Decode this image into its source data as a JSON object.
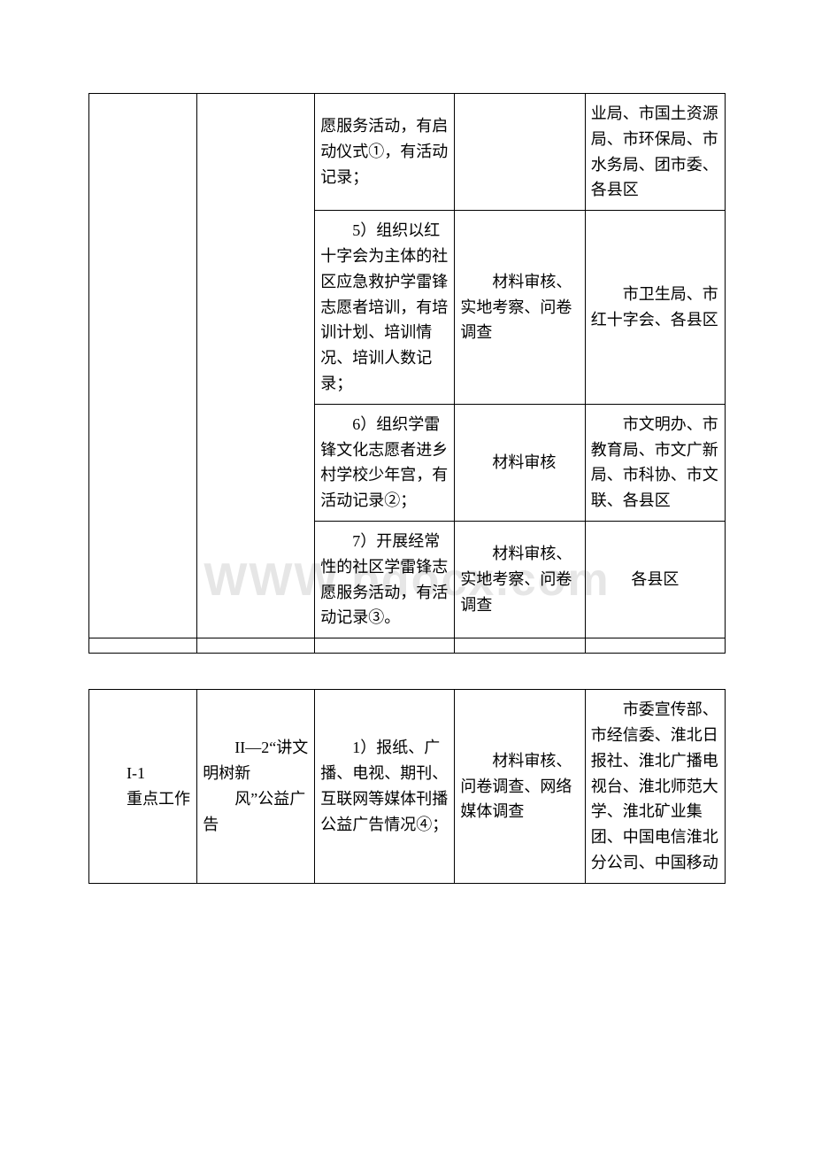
{
  "watermark": "WWW.bdocx.com",
  "table1": {
    "rows": [
      {
        "c1": "",
        "c2": "",
        "c3": "愿服务活动，有启动仪式①，有活动记录；",
        "c4": "",
        "c5": "业局、市国土资源局、市环保局、市水务局、团市委、各县区"
      },
      {
        "c3": "　　5）组织以红十字会为主体的社区应急救护学雷锋志愿者培训，有培训计划、培训情况、培训人数记录；",
        "c4": "　　材料审核、实地考察、问卷调查",
        "c5": "　　市卫生局、市红十字会、各县区"
      },
      {
        "c3": "　　6）组织学雷锋文化志愿者进乡村学校少年宫，有活动记录②；",
        "c4": "　　材料审核",
        "c5": "　　市文明办、市教育局、市文广新局、市科协、市文联、各县区"
      },
      {
        "c3": "　　7）开展经常性的社区学雷锋志愿服务活动，有活动记录③。",
        "c4": "　　材料审核、实地考察、问卷调查",
        "c5": "各县区"
      },
      {
        "c1": "",
        "c2": "",
        "c3": "",
        "c4": "",
        "c5": ""
      }
    ]
  },
  "table2": {
    "rows": [
      {
        "c1": "　　I-1\n　　重点工作",
        "c2": "　　II—2“讲文明树新\n　　风”公益广告",
        "c3": "　　1）报纸、广播、电视、期刊、互联网等媒体刊播公益广告情况④；",
        "c4": "　　材料审核、问卷调查、网络媒体调查",
        "c5": "　　市委宣传部、市经信委、淮北日报社、淮北广播电视台、淮北师范大学、淮北矿业集团、中国电信淮北分公司、中国移动"
      }
    ]
  },
  "styles": {
    "font_family": "SimSun",
    "font_size": 18,
    "border_color": "#000000",
    "background_color": "#ffffff",
    "watermark_color": "rgba(200,200,200,0.45)",
    "line_height": 1.6
  }
}
